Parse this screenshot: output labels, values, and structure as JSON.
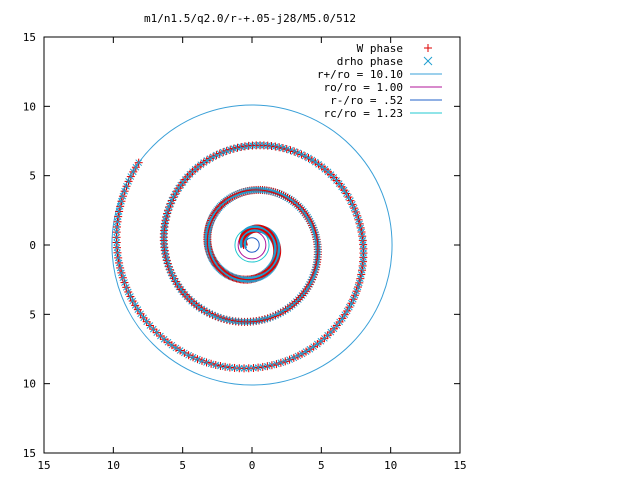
{
  "chart_data": {
    "type": "scatter",
    "title": "m1/n1.5/q2.0/r-+.05-j28/M5.0/512",
    "xlim": [
      -15,
      15
    ],
    "ylim": [
      -15,
      15
    ],
    "x_tick_values": [
      -15,
      -10,
      -5,
      0,
      5,
      10,
      15
    ],
    "y_tick_values": [
      -15,
      -10,
      -5,
      0,
      5,
      10,
      15
    ],
    "x_tick_labels": [
      "15",
      "10",
      "5",
      "0",
      "5",
      "10",
      "15"
    ],
    "y_tick_labels": [
      "15",
      "10",
      "5",
      "0",
      "5",
      "10",
      "15"
    ],
    "grid": false,
    "legend_position": "top-right",
    "point_series": [
      {
        "name": "W phase",
        "marker": "plus",
        "color": "#dd0000"
      },
      {
        "name": "drho phase",
        "marker": "x",
        "color": "#1f9fd0"
      }
    ],
    "spiral_arm": {
      "start_radius": 0.6,
      "end_radius": 10.1,
      "turns": 3.1,
      "points": 512
    },
    "circles": [
      {
        "name": "r+/ro = 10.10",
        "radius": 10.1,
        "color": "#3aa0d8"
      },
      {
        "name": "ro/ro = 1.00",
        "radius": 1.0,
        "color": "#b0149a"
      },
      {
        "name": "r-/ro = .52",
        "radius": 0.52,
        "color": "#2060c8"
      },
      {
        "name": "rc/ro = 1.23",
        "radius": 1.23,
        "color": "#20c8d0"
      }
    ]
  }
}
